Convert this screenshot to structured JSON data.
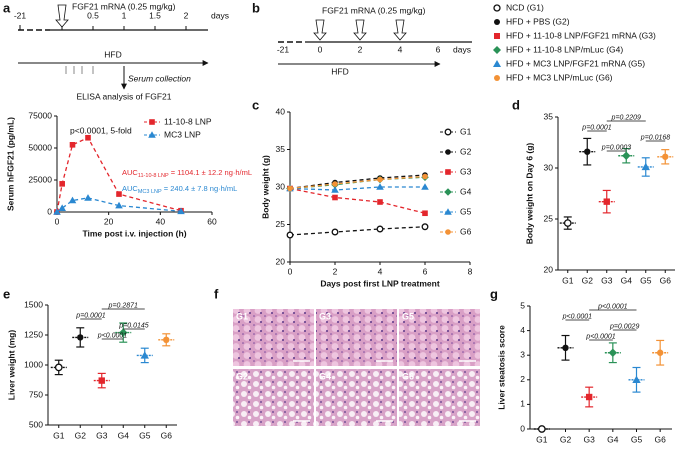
{
  "panel_labels": [
    "a",
    "b",
    "c",
    "d",
    "e",
    "f",
    "g"
  ],
  "timeline_a": {
    "injection": "FGF21 mRNA (0.25 mg/kg)",
    "ticks": [
      "-21",
      "0",
      "0.5",
      "1",
      "1.5",
      "2"
    ],
    "unit": "days",
    "diet": "HFD",
    "collection": "Serum collection",
    "assay": "ELISA analysis of FGF21"
  },
  "timeline_b": {
    "injection": "FGF21 mRNA (0.25 mg/kg)",
    "ticks": [
      "-21",
      "0",
      "2",
      "4",
      "6"
    ],
    "unit": "days",
    "diet": "HFD"
  },
  "legend": [
    {
      "label": "NCD (G1)",
      "color": "#111111",
      "marker": "circle-open"
    },
    {
      "label": "HFD + PBS (G2)",
      "color": "#111111",
      "marker": "circle"
    },
    {
      "label": "HFD + 11-10-8 LNP/FGF21 mRNA (G3)",
      "color": "#e3262c",
      "marker": "square"
    },
    {
      "label": "HFD + 11-10-8 LNP/mLuc (G4)",
      "color": "#2a9257",
      "marker": "diamond"
    },
    {
      "label": "HFD + MC3 LNP/FGF21 mRNA (G5)",
      "color": "#2a88d1",
      "marker": "triangle"
    },
    {
      "label": "HFD + MC3 LNP/mLuc (G6)",
      "color": "#f39236",
      "marker": "circle"
    }
  ],
  "histology": {
    "labels": [
      "G1",
      "G3",
      "G5",
      "G2",
      "G4",
      "G6"
    ]
  },
  "chart_data": [
    {
      "type": "line",
      "x_label": "Time post i.v. injection (h)",
      "y_label": "Serum hFGF21 (pg/mL)",
      "x": [
        0,
        2,
        6,
        12,
        24,
        48
      ],
      "xlim": [
        0,
        60
      ],
      "xticks": [
        0,
        20,
        40,
        60
      ],
      "ylim": [
        0,
        75000
      ],
      "yticks": [
        0,
        25000,
        50000,
        75000
      ],
      "dashed": true,
      "legend": "upper-right",
      "series": [
        {
          "name": "11-10-8 LNP",
          "color": "#e3262c",
          "marker": "square",
          "values": [
            0,
            22000,
            52500,
            58000,
            14000,
            1000
          ]
        },
        {
          "name": "MC3 LNP",
          "color": "#2a88d1",
          "marker": "triangle",
          "values": [
            0,
            3000,
            9000,
            11000,
            5000,
            500
          ]
        }
      ],
      "annotation": "p<0.0001, 5-fold",
      "auc": [
        {
          "main": "AUC",
          "sub": "11-10-8 LNP",
          "rest": " = 1104.1 ± 12.2 ng·h/mL"
        },
        {
          "main": "AUC",
          "sub": "MC3 LNP",
          "rest": " = 240.4 ± 7.8 ng·h/mL"
        }
      ]
    },
    {
      "type": "line",
      "x_label": "Days post first LNP treatment",
      "y_label": "Body weight (g)",
      "x": [
        0,
        2,
        4,
        6
      ],
      "xlim": [
        0,
        8
      ],
      "xticks": [
        0,
        2,
        4,
        6,
        8
      ],
      "ylim": [
        20,
        40
      ],
      "yticks": [
        20,
        25,
        30,
        35,
        40
      ],
      "dashed": true,
      "legend": "right",
      "series": [
        {
          "name": "G1",
          "color": "#111111",
          "marker": "circle-open",
          "values": [
            23.6,
            24.0,
            24.4,
            24.7
          ]
        },
        {
          "name": "G2",
          "color": "#111111",
          "marker": "circle",
          "values": [
            29.8,
            30.6,
            31.2,
            31.6
          ]
        },
        {
          "name": "G3",
          "color": "#e3262c",
          "marker": "square",
          "values": [
            29.8,
            28.6,
            28.0,
            26.5
          ]
        },
        {
          "name": "G4",
          "color": "#2a9257",
          "marker": "diamond",
          "values": [
            29.8,
            30.3,
            31.0,
            31.3
          ]
        },
        {
          "name": "G5",
          "color": "#2a88d1",
          "marker": "triangle",
          "values": [
            29.8,
            29.6,
            30.0,
            30.0
          ]
        },
        {
          "name": "G6",
          "color": "#f39236",
          "marker": "circle",
          "values": [
            29.8,
            30.4,
            31.0,
            31.4
          ]
        }
      ]
    },
    {
      "type": "dot",
      "y_label": "Body weight on Day 6 (g)",
      "categories": [
        "G1",
        "G2",
        "G3",
        "G4",
        "G5",
        "G6"
      ],
      "values": [
        24.6,
        31.6,
        26.7,
        31.2,
        30.1,
        31.1
      ],
      "errors": [
        0.6,
        1.3,
        1.1,
        0.7,
        0.9,
        0.7
      ],
      "colors": [
        "#111111",
        "#111111",
        "#e3262c",
        "#2a9257",
        "#2a88d1",
        "#f39236"
      ],
      "markers": [
        "circle-open",
        "circle",
        "square",
        "diamond",
        "triangle",
        "circle"
      ],
      "ylim": [
        20,
        35
      ],
      "yticks": [
        20,
        25,
        30,
        35
      ],
      "comparisons": [
        {
          "label": "p=0.2209",
          "groups": [
            "G3",
            "G5"
          ]
        },
        {
          "label": "p=0.0001",
          "groups": [
            "G2",
            "G3"
          ]
        },
        {
          "label": "p=0.0168",
          "groups": [
            "G5",
            "G6"
          ]
        },
        {
          "label": "p=0.0003",
          "groups": [
            "G3",
            "G4"
          ]
        }
      ]
    },
    {
      "type": "dot",
      "y_label": "Liver weight (mg)",
      "categories": [
        "G1",
        "G2",
        "G3",
        "G4",
        "G5",
        "G6"
      ],
      "values": [
        980,
        1230,
        870,
        1270,
        1080,
        1210
      ],
      "errors": [
        60,
        80,
        60,
        80,
        60,
        50
      ],
      "colors": [
        "#111111",
        "#111111",
        "#e3262c",
        "#2a9257",
        "#2a88d1",
        "#f39236"
      ],
      "markers": [
        "circle-open",
        "circle",
        "square",
        "diamond",
        "triangle",
        "circle"
      ],
      "ylim": [
        500,
        1500
      ],
      "yticks": [
        500,
        750,
        1000,
        1250,
        1500
      ],
      "comparisons": [
        {
          "label": "p=0.2871",
          "groups": [
            "G3",
            "G5"
          ]
        },
        {
          "label": "p=0.0001",
          "groups": [
            "G2",
            "G3"
          ]
        },
        {
          "label": "p=0.0145",
          "groups": [
            "G4",
            "G5"
          ]
        },
        {
          "label": "p<0.0001",
          "groups": [
            "G3",
            "G4"
          ]
        }
      ]
    },
    {
      "type": "dot",
      "y_label": "Liver steatosis score",
      "categories": [
        "G1",
        "G2",
        "G3",
        "G4",
        "G5",
        "G6"
      ],
      "values": [
        0,
        3.3,
        1.3,
        3.1,
        2.0,
        3.1
      ],
      "errors": [
        0,
        0.5,
        0.4,
        0.4,
        0.5,
        0.5
      ],
      "colors": [
        "#111111",
        "#111111",
        "#e3262c",
        "#2a9257",
        "#2a88d1",
        "#f39236"
      ],
      "markers": [
        "circle-open",
        "circle",
        "square",
        "diamond",
        "triangle",
        "circle"
      ],
      "ylim": [
        0,
        5
      ],
      "yticks": [
        0,
        1,
        2,
        3,
        4,
        5
      ],
      "comparisons": [
        {
          "label": "p<0.0001",
          "groups": [
            "G3",
            "G5"
          ]
        },
        {
          "label": "p<0.0001",
          "groups": [
            "G2",
            "G3"
          ]
        },
        {
          "label": "p=0.0029",
          "groups": [
            "G4",
            "G5"
          ]
        },
        {
          "label": "p<0.0001",
          "groups": [
            "G3",
            "G4"
          ]
        }
      ]
    }
  ]
}
